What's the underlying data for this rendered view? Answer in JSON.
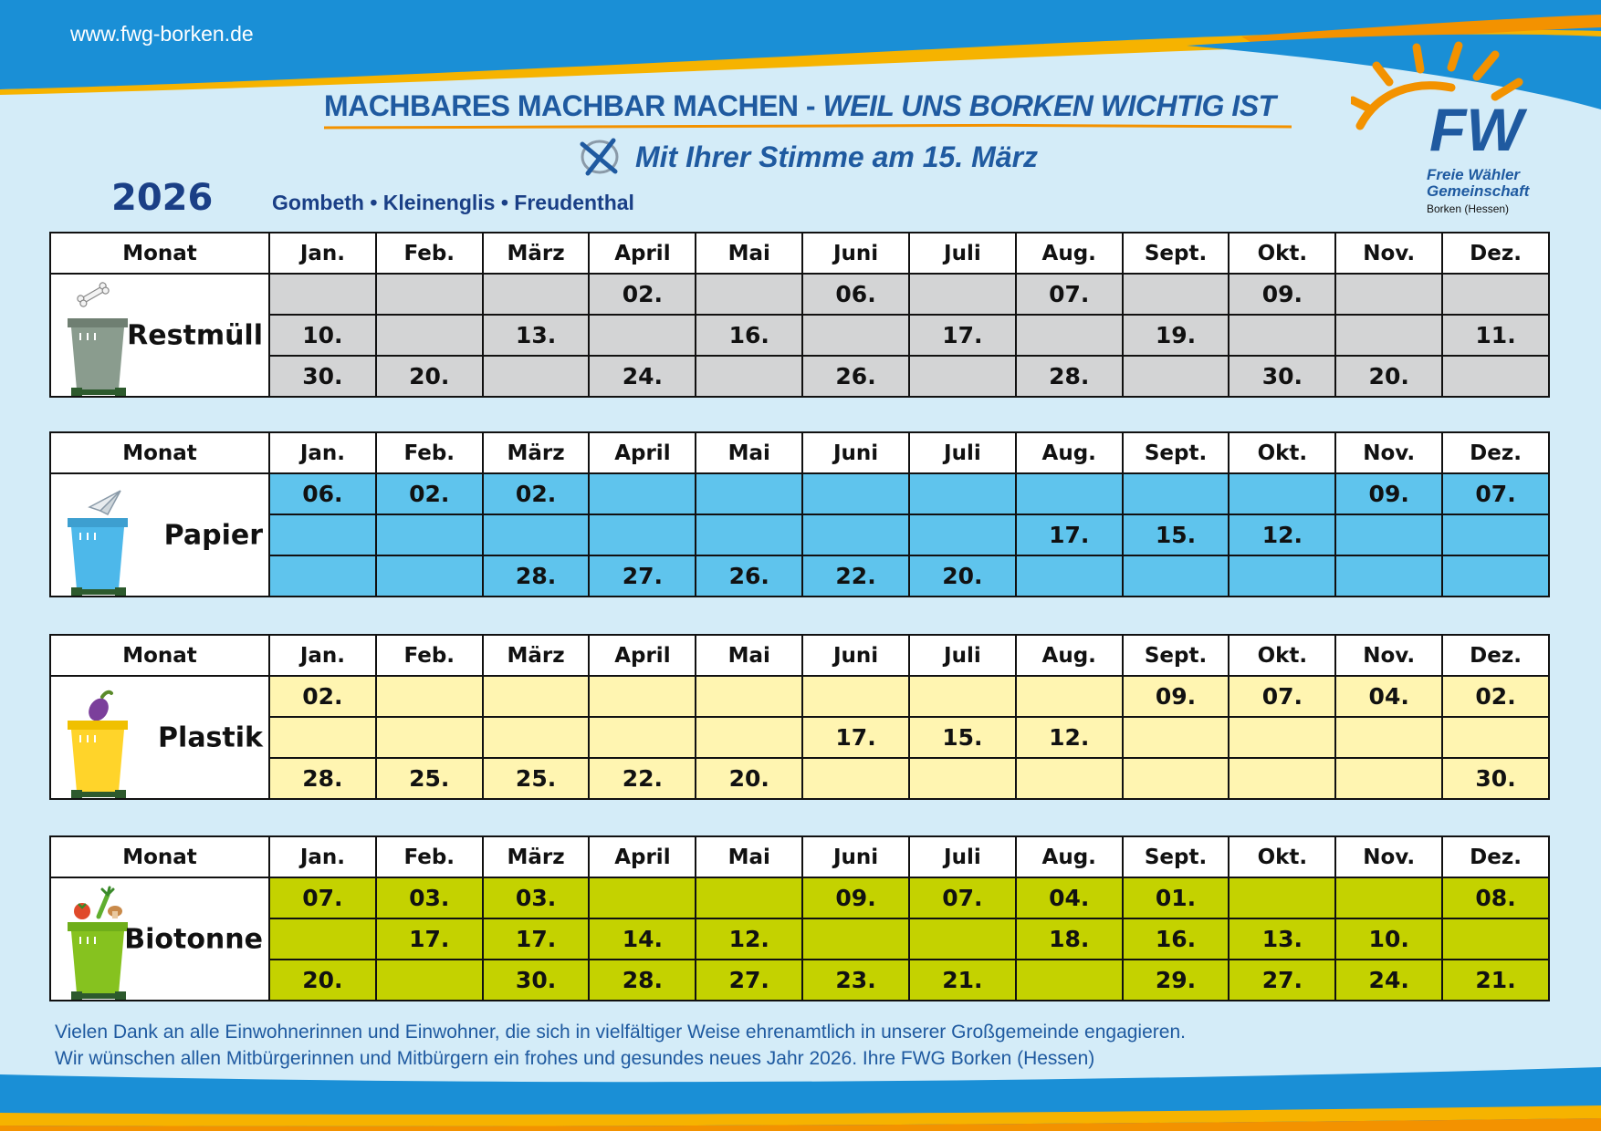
{
  "header": {
    "url": "www.fwg-borken.de",
    "slogan_main": "MACHBARES MACHBAR MACHEN - ",
    "slogan_italic": "WEIL UNS BORKEN WICHTIG IST",
    "vote_text": "Mit Ihrer Stimme am 15. März",
    "year": "2026",
    "villages": "Gombeth • Kleinenglis • Freudenthal"
  },
  "logo": {
    "letters": "FW",
    "line1": "Freie Wähler",
    "line2": "Gemeinschaft",
    "line3": "Borken (Hessen)"
  },
  "colors": {
    "brand_blue": "#1f5aa0",
    "accent_orange": "#f39200",
    "restmuell": "#d3d4d5",
    "papier": "#5fc4ed",
    "plastik": "#fff5b1",
    "biotonne": "#c4d200"
  },
  "header_row": {
    "label": "Monat",
    "months": [
      "Jan.",
      "Feb.",
      "März",
      "April",
      "Mai",
      "Juni",
      "Juli",
      "Aug.",
      "Sept.",
      "Okt.",
      "Nov.",
      "Dez."
    ]
  },
  "schedules": [
    {
      "label": "Restmüll",
      "icon": "grey-bin-bone-icon",
      "rows": [
        [
          "",
          "",
          "",
          "02.",
          "",
          "06.",
          "",
          "07.",
          "",
          "09.",
          "",
          ""
        ],
        [
          "10.",
          "",
          "13.",
          "",
          "16.",
          "",
          "17.",
          "",
          "19.",
          "",
          "",
          "11."
        ],
        [
          "30.",
          "20.",
          "",
          "24.",
          "",
          "26.",
          "",
          "28.",
          "",
          "30.",
          "20.",
          ""
        ]
      ]
    },
    {
      "label": "Papier",
      "icon": "blue-bin-paper-plane-icon",
      "rows": [
        [
          "06.",
          "02.",
          "02.",
          "",
          "",
          "",
          "",
          "",
          "",
          "",
          "09.",
          "07."
        ],
        [
          "",
          "",
          "",
          "",
          "",
          "",
          "",
          "17.",
          "15.",
          "12.",
          "",
          ""
        ],
        [
          "",
          "",
          "28.",
          "27.",
          "26.",
          "22.",
          "20.",
          "",
          "",
          "",
          "",
          ""
        ]
      ]
    },
    {
      "label": "Plastik",
      "icon": "yellow-bin-eggplant-icon",
      "rows": [
        [
          "02.",
          "",
          "",
          "",
          "",
          "",
          "",
          "",
          "09.",
          "07.",
          "04.",
          "02."
        ],
        [
          "",
          "",
          "",
          "",
          "",
          "17.",
          "15.",
          "12.",
          "",
          "",
          "",
          ""
        ],
        [
          "28.",
          "25.",
          "25.",
          "22.",
          "20.",
          "",
          "",
          "",
          "",
          "",
          "",
          "30."
        ]
      ]
    },
    {
      "label": "Biotonne",
      "icon": "green-bin-vegetables-icon",
      "rows": [
        [
          "07.",
          "03.",
          "03.",
          "",
          "",
          "09.",
          "07.",
          "04.",
          "01.",
          "",
          "",
          "08."
        ],
        [
          "",
          "17.",
          "17.",
          "14.",
          "12.",
          "",
          "",
          "18.",
          "16.",
          "13.",
          "10.",
          ""
        ],
        [
          "20.",
          "",
          "30.",
          "28.",
          "27.",
          "23.",
          "21.",
          "",
          "29.",
          "27.",
          "24.",
          "21."
        ]
      ]
    }
  ],
  "footer": {
    "line1": "Vielen Dank an alle Einwohnerinnen und Einwohner, die sich in vielfältiger Weise ehrenamtlich in unserer Großgemeinde engagieren.",
    "line2": "Wir wünschen allen Mitbürgerinnen und Mitbürgern ein frohes und gesundes neues Jahr 2026.  Ihre FWG Borken (Hessen)"
  }
}
